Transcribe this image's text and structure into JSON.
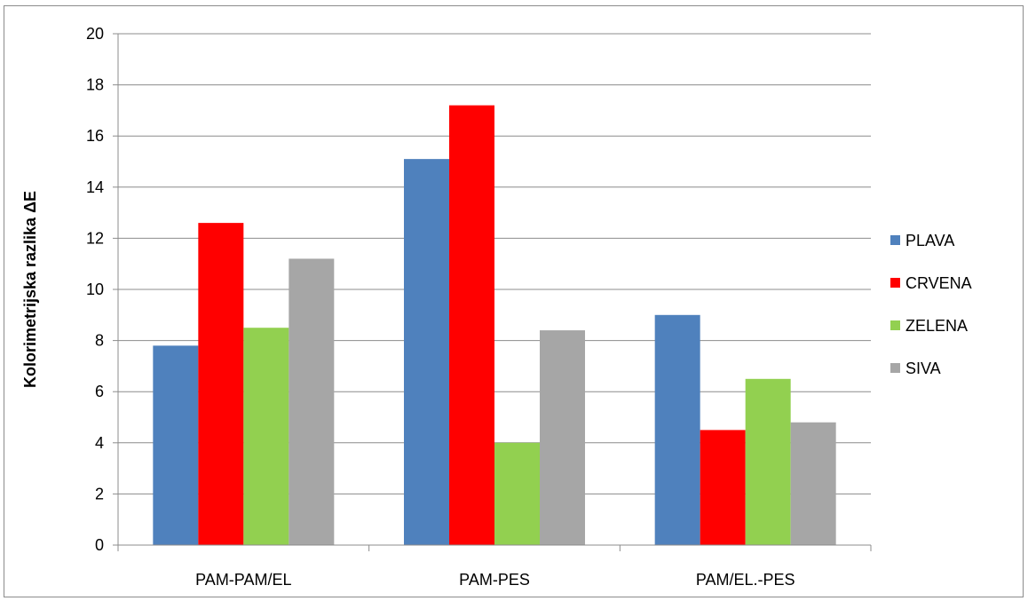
{
  "chart_data": {
    "type": "bar",
    "title": "",
    "xlabel": "",
    "ylabel": "Kolorimetrijska razlika ΔE",
    "ylim": [
      0,
      20
    ],
    "yticks": [
      0,
      2,
      4,
      6,
      8,
      10,
      12,
      14,
      16,
      18,
      20
    ],
    "grid": true,
    "legend_position": "right",
    "categories": [
      "PAM-PAM/EL",
      "PAM-PES",
      "PAM/EL.-PES"
    ],
    "series": [
      {
        "name": "PLAVA",
        "color": "#4f81bd",
        "values": [
          7.8,
          15.1,
          9.0
        ]
      },
      {
        "name": "CRVENA",
        "color": "#ff0000",
        "values": [
          12.6,
          17.2,
          4.5
        ]
      },
      {
        "name": "ZELENA",
        "color": "#92d050",
        "values": [
          8.5,
          4.0,
          6.5
        ]
      },
      {
        "name": "SIVA",
        "color": "#a6a6a6",
        "values": [
          11.2,
          8.4,
          4.8
        ]
      }
    ]
  }
}
